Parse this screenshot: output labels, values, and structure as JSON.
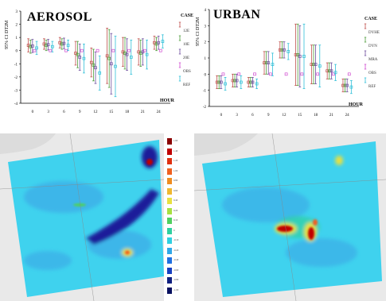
{
  "chart_data": [
    {
      "type": "errorbar",
      "title": "AEROSOL",
      "ylabel": "95% CI DT2M",
      "xlabel": "HOUR",
      "ylim": [
        -4,
        3
      ],
      "yticks": [
        "3",
        "2",
        "1",
        "0",
        "-1",
        "-2",
        "-3",
        "-4"
      ],
      "categories": [
        "0",
        "3",
        "6",
        "9",
        "12",
        "15",
        "18",
        "21",
        "24"
      ],
      "legend_title": "CASE",
      "series": [
        {
          "name": "12E",
          "color": "#c0504d",
          "mean": [
            0.4,
            0.5,
            0.6,
            -0.2,
            -0.9,
            -0.4,
            -0.1,
            -0.1,
            0.6
          ],
          "half": [
            0.5,
            0.4,
            0.4,
            0.9,
            1.1,
            2.1,
            1.1,
            1.0,
            0.5
          ]
        },
        {
          "name": "10E",
          "color": "#4f9e3b",
          "mean": [
            0.3,
            0.4,
            0.5,
            -0.3,
            -1.1,
            -0.6,
            -0.2,
            -0.2,
            0.5
          ],
          "half": [
            0.5,
            0.4,
            0.4,
            1.0,
            1.2,
            2.2,
            1.2,
            1.0,
            0.5
          ]
        },
        {
          "name": "20E",
          "color": "#6f4f9f",
          "mean": [
            0.35,
            0.45,
            0.55,
            -0.5,
            -1.3,
            -1.0,
            -0.3,
            -0.1,
            0.6
          ],
          "half": [
            0.5,
            0.4,
            0.4,
            1.0,
            1.2,
            2.3,
            1.2,
            1.0,
            0.5
          ]
        },
        {
          "name": "OBS",
          "color": "#d04ad0",
          "mean": [
            0.0,
            0.0,
            0.0,
            0.0,
            0.0,
            0.0,
            0.0,
            0.0,
            0.0
          ],
          "half": [
            0,
            0,
            0,
            0,
            0,
            0,
            0,
            0,
            0
          ]
        },
        {
          "name": "REF",
          "color": "#31c0d8",
          "mean": [
            0.2,
            0.3,
            0.4,
            -0.6,
            -1.7,
            -1.2,
            -0.5,
            -0.3,
            0.7
          ],
          "half": [
            0.5,
            0.4,
            0.4,
            1.1,
            1.3,
            2.3,
            1.3,
            1.1,
            0.5
          ]
        }
      ]
    },
    {
      "type": "errorbar",
      "title": "URBAN",
      "ylabel": "95% CI DT2M",
      "xlabel": "HOUR",
      "ylim": [
        -2,
        4
      ],
      "yticks": [
        "4",
        "3",
        "2",
        "1",
        "0",
        "-1",
        "-2"
      ],
      "categories": [
        "0",
        "3",
        "6",
        "9",
        "12",
        "15",
        "18",
        "21",
        "24"
      ],
      "legend_title": "CASE",
      "series": [
        {
          "name": "DYHE",
          "color": "#c0504d",
          "mean": [
            -0.5,
            -0.4,
            -0.5,
            0.7,
            1.5,
            1.2,
            0.6,
            0.2,
            -0.7
          ],
          "half": [
            0.4,
            0.4,
            0.3,
            0.7,
            0.5,
            1.9,
            1.2,
            0.5,
            0.4
          ]
        },
        {
          "name": "DYN",
          "color": "#4f9e3b",
          "mean": [
            -0.5,
            -0.4,
            -0.5,
            0.7,
            1.5,
            1.2,
            0.6,
            0.2,
            -0.7
          ],
          "half": [
            0.4,
            0.4,
            0.3,
            0.7,
            0.5,
            1.9,
            1.2,
            0.5,
            0.4
          ]
        },
        {
          "name": "MRA",
          "color": "#6f4f9f",
          "mean": [
            -0.5,
            -0.4,
            -0.5,
            0.7,
            1.5,
            1.1,
            0.6,
            0.2,
            -0.7
          ],
          "half": [
            0.4,
            0.4,
            0.3,
            0.7,
            0.5,
            1.9,
            1.2,
            0.5,
            0.4
          ]
        },
        {
          "name": "OBS",
          "color": "#d04ad0",
          "mean": [
            0.0,
            0.0,
            0.0,
            0.0,
            0.0,
            0.0,
            0.0,
            0.0,
            0.0
          ],
          "half": [
            0,
            0,
            0,
            0,
            0,
            0,
            0,
            0,
            0
          ]
        },
        {
          "name": "REF",
          "color": "#31c0d8",
          "mean": [
            -0.6,
            -0.5,
            -0.6,
            0.6,
            1.4,
            1.1,
            0.5,
            0.1,
            -0.8
          ],
          "half": [
            0.4,
            0.4,
            0.3,
            0.7,
            0.5,
            2.0,
            1.3,
            0.5,
            0.4
          ]
        }
      ]
    }
  ],
  "maps": {
    "field_color": "#3fd2ee",
    "colorbar": {
      "colors": [
        "#8b0000",
        "#c00000",
        "#e03010",
        "#f06020",
        "#f08c20",
        "#f0b830",
        "#e8e040",
        "#a8e040",
        "#50d060",
        "#30d0a0",
        "#30d0e0",
        "#30a8e8",
        "#2070e0",
        "#1840c0",
        "#102080",
        "#081060"
      ],
      "labels": [
        "1.60",
        "1.40",
        "1.20",
        "1.00",
        "0.80",
        "0.60",
        "0.40",
        "0.20",
        "0.10",
        "0",
        "-0.10",
        "-0.20",
        "-0.40",
        "-0.60",
        "-0.80",
        "-1.00"
      ]
    }
  }
}
